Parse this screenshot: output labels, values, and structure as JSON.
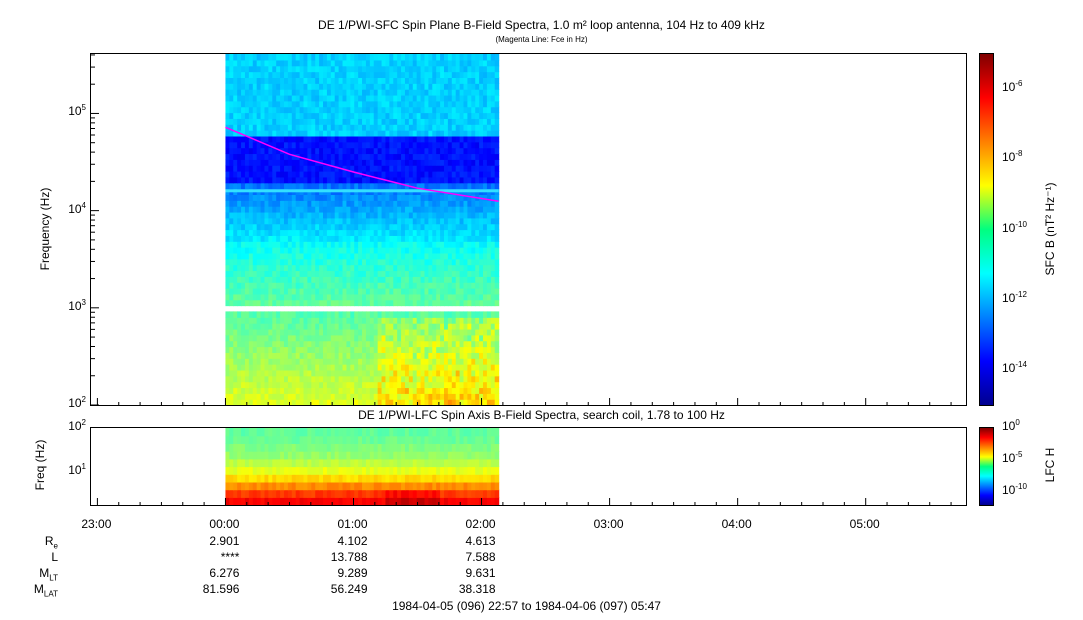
{
  "chart_data": [
    {
      "type": "heatmap",
      "title": "DE 1/PWI-SFC  Spin Plane B-Field Spectra, 1.0 m² loop antenna, 104 Hz to 409 kHz",
      "subtitle": "(Magenta Line: Fce in Hz)",
      "ylabel": "Frequency (Hz)",
      "yscale": "log",
      "ylim": [
        100,
        409000
      ],
      "yticks": [
        "10^2",
        "10^3",
        "10^4",
        "10^5"
      ],
      "colorbar_label": "SFC B (nT² Hz⁻¹)",
      "colorbar_scale": "log",
      "colorbar_range": [
        1e-15,
        1e-05
      ],
      "colorbar_ticks": [
        "10^-6",
        "10^-8",
        "10^-10",
        "10^-12",
        "10^-14"
      ],
      "data_coverage": [
        "00:00",
        "02:08"
      ],
      "fce_line": {
        "color": "#ff00ff",
        "points": [
          {
            "time": "00:00",
            "fce_hz": 72000
          },
          {
            "time": "00:30",
            "fce_hz": 38000
          },
          {
            "time": "01:00",
            "fce_hz": 25000
          },
          {
            "time": "01:30",
            "fce_hz": 17000
          },
          {
            "time": "02:08",
            "fce_hz": 12500
          }
        ]
      },
      "interference_line_hz": 16000
    },
    {
      "type": "heatmap",
      "title": "DE 1/PWI-LFC  Spin Axis B-Field Spectra, search coil, 1.78 to 100 Hz",
      "ylabel": "Freq (Hz)",
      "yscale": "log",
      "ylim": [
        1.78,
        100
      ],
      "yticks": [
        "10^1",
        "10^2"
      ],
      "colorbar_label": "LFC H",
      "colorbar_scale": "log",
      "colorbar_range": [
        1e-12,
        1
      ],
      "colorbar_ticks": [
        "10^0",
        "10^-5",
        "10^-10"
      ],
      "data_coverage": [
        "00:00",
        "02:08"
      ]
    }
  ],
  "xaxis": {
    "ticks": [
      "23:00",
      "00:00",
      "01:00",
      "02:00",
      "03:00",
      "04:00",
      "05:00"
    ]
  },
  "orbit": {
    "rows": [
      {
        "label": "R",
        "sub": "e",
        "values": [
          "2.901",
          "4.102",
          "4.613"
        ]
      },
      {
        "label": "L",
        "sub": "",
        "values": [
          "****",
          "13.788",
          "7.588"
        ]
      },
      {
        "label": "M",
        "sub": "LT",
        "values": [
          "6.276",
          "9.289",
          "9.631"
        ]
      },
      {
        "label": "M",
        "sub": "LAT",
        "values": [
          "81.596",
          "56.249",
          "38.318"
        ]
      }
    ]
  },
  "time_range": "1984-04-05 (096) 22:57 to 1984-04-06 (097) 05:47"
}
